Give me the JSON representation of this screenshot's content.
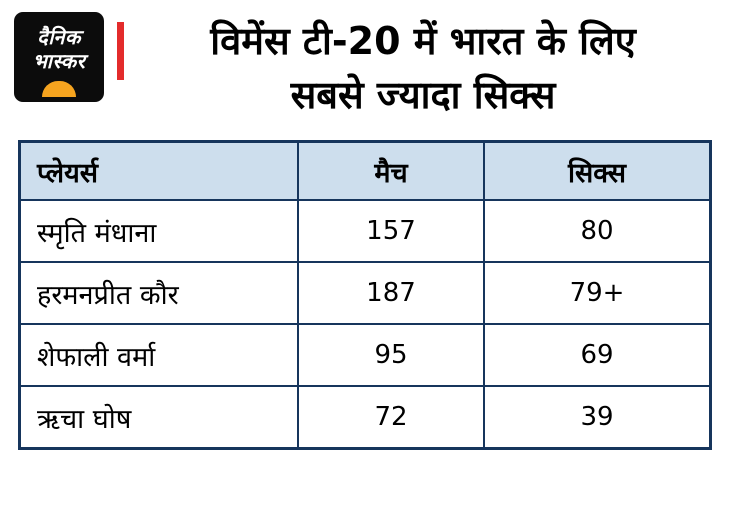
{
  "brand": {
    "logo_line1": "दैनिक",
    "logo_line2": "भास्कर"
  },
  "header": {
    "title_line1": "विमेंस टी-20 में भारत के लिए",
    "title_line2": "सबसे ज्यादा सिक्स"
  },
  "colors": {
    "accent_red": "#e32b2b",
    "table_border": "#16355c",
    "table_header_bg": "#cddeed",
    "logo_bg": "#0c0c0c",
    "logo_sun_orange": "#f6a41f"
  },
  "table": {
    "headers": [
      "प्लेयर्स",
      "मैच",
      "सिक्स"
    ],
    "rows": [
      {
        "player": "स्मृति मंधाना",
        "matches": "157",
        "sixes": "80"
      },
      {
        "player": "हरमनप्रीत कौर",
        "matches": "187",
        "sixes": "79+"
      },
      {
        "player": "शेफाली वर्मा",
        "matches": "95",
        "sixes": "69"
      },
      {
        "player": "ऋचा घोष",
        "matches": "72",
        "sixes": "39"
      }
    ]
  },
  "chart_data": {
    "type": "table",
    "title": "विमेंस टी-20 में भारत के लिए सबसे ज्यादा सिक्स",
    "columns": [
      "प्लेयर्स",
      "मैच",
      "सिक्स"
    ],
    "rows": [
      [
        "स्मृति मंधाना",
        "157",
        "80"
      ],
      [
        "हरमनप्रीत कौर",
        "187",
        "79+"
      ],
      [
        "शेफाली वर्मा",
        "95",
        "69"
      ],
      [
        "ऋचा घोष",
        "72",
        "39"
      ]
    ]
  }
}
